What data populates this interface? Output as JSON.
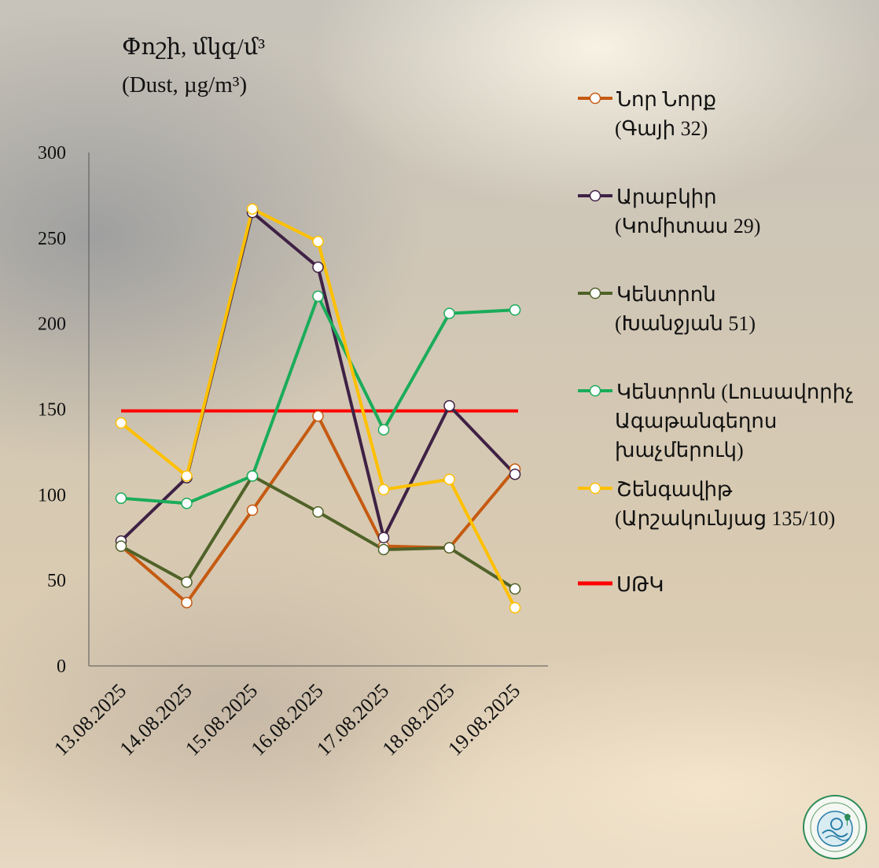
{
  "chart_data": {
    "type": "line",
    "title": "Փոշի, մկգ/մ³",
    "subtitle": "(Dust, µg/m³)",
    "categories": [
      "13.08.2025",
      "14.08.2025",
      "15.08.2025",
      "16.08.2025",
      "17.08.2025",
      "18.08.2025",
      "19.08.2025"
    ],
    "yticks": [
      0,
      50,
      100,
      150,
      200,
      250,
      300
    ],
    "ylim": [
      0,
      300
    ],
    "grid": false,
    "legend_position": "right",
    "series": [
      {
        "name_lines": [
          "Նոր Նորք",
          "(Գայի 32)"
        ],
        "color": "#c55a11",
        "values": [
          70,
          37,
          91,
          146,
          70,
          69,
          115
        ]
      },
      {
        "name_lines": [
          "Արաբկիր",
          "(Կոմիտաս 29)"
        ],
        "color": "#3f2145",
        "values": [
          73,
          110,
          265,
          233,
          75,
          152,
          112
        ]
      },
      {
        "name_lines": [
          "Կենտրոն",
          "(Խանջյան 51)"
        ],
        "color": "#4f6228",
        "values": [
          70,
          49,
          111,
          90,
          68,
          69,
          45
        ]
      },
      {
        "name_lines": [
          "Կենտրոն (Լուսավորիչ",
          "Ագաթանգեղոս",
          "խաչմերուկ)"
        ],
        "color": "#1aac5a",
        "values": [
          98,
          95,
          111,
          216,
          138,
          206,
          208
        ]
      },
      {
        "name_lines": [
          "Շենգավիթ",
          "(Արշակունյաց 135/10)"
        ],
        "color": "#ffc000",
        "values": [
          142,
          111,
          267,
          248,
          103,
          109,
          34
        ]
      }
    ],
    "reference_line": {
      "name": "ՍԹԿ",
      "color": "#ff0000",
      "value": 149
    }
  }
}
